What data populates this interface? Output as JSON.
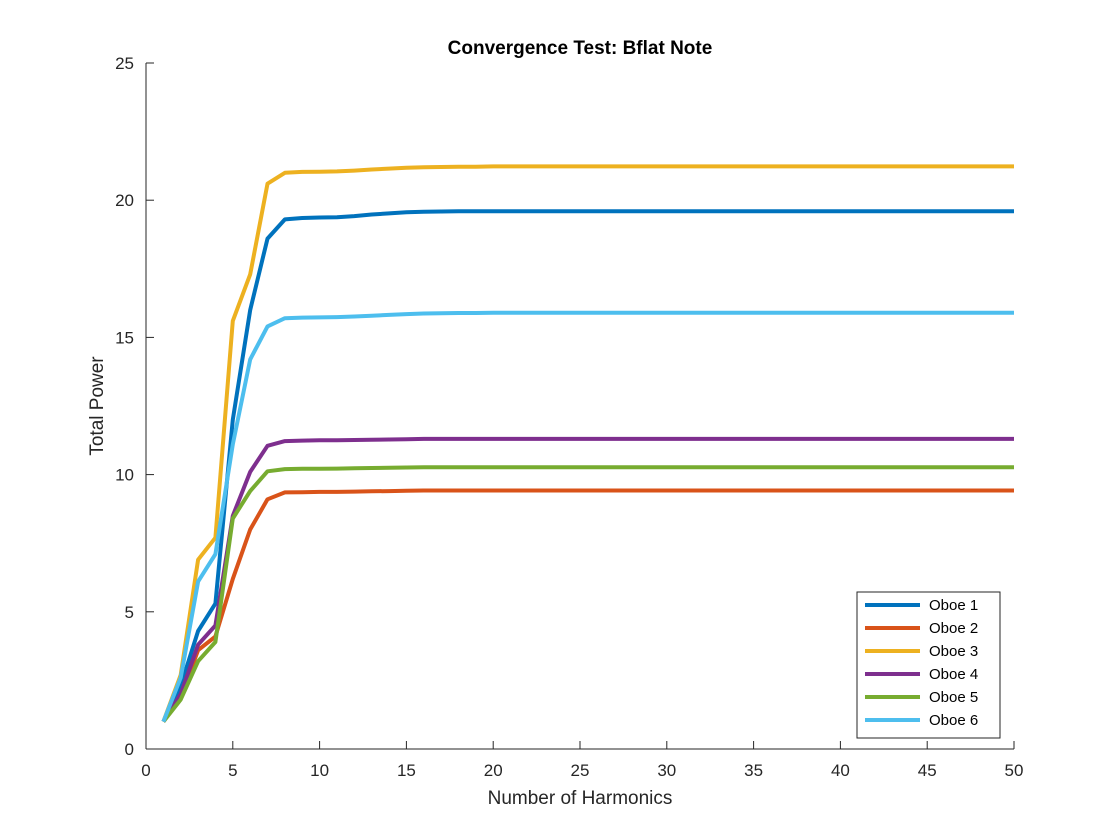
{
  "chart_data": {
    "type": "line",
    "title": "Convergence Test: Bflat Note",
    "xlabel": "Number of Harmonics",
    "ylabel": "Total Power",
    "xlim": [
      0,
      50
    ],
    "ylim": [
      0,
      25
    ],
    "xticks": [
      0,
      5,
      10,
      15,
      20,
      25,
      30,
      35,
      40,
      45,
      50
    ],
    "yticks": [
      0,
      5,
      10,
      15,
      20,
      25
    ],
    "grid": false,
    "legend_position": "bottom-right",
    "x": [
      1,
      2,
      3,
      4,
      5,
      6,
      7,
      8,
      9,
      10,
      11,
      12,
      13,
      14,
      15,
      16,
      17,
      18,
      19,
      20,
      21,
      22,
      23,
      24,
      25,
      26,
      27,
      28,
      29,
      30,
      31,
      32,
      33,
      34,
      35,
      36,
      37,
      38,
      39,
      40,
      41,
      42,
      43,
      44,
      45,
      46,
      47,
      48,
      49,
      50
    ],
    "series": [
      {
        "name": "Oboe 1",
        "color": "#0072BD",
        "values": [
          1.0,
          2.3,
          4.3,
          5.3,
          12.0,
          16.0,
          18.6,
          19.3,
          19.35,
          19.37,
          19.38,
          19.42,
          19.48,
          19.52,
          19.56,
          19.58,
          19.59,
          19.6,
          19.6,
          19.6,
          19.6,
          19.6,
          19.6,
          19.6,
          19.6,
          19.6,
          19.6,
          19.6,
          19.6,
          19.6,
          19.6,
          19.6,
          19.6,
          19.6,
          19.6,
          19.6,
          19.6,
          19.6,
          19.6,
          19.6,
          19.6,
          19.6,
          19.6,
          19.6,
          19.6,
          19.6,
          19.6,
          19.6,
          19.6,
          19.6
        ]
      },
      {
        "name": "Oboe 2",
        "color": "#D95319",
        "values": [
          1.0,
          1.9,
          3.6,
          4.1,
          6.2,
          8.0,
          9.1,
          9.35,
          9.36,
          9.37,
          9.37,
          9.38,
          9.39,
          9.4,
          9.41,
          9.42,
          9.42,
          9.42,
          9.42,
          9.42,
          9.42,
          9.42,
          9.42,
          9.42,
          9.42,
          9.42,
          9.42,
          9.42,
          9.42,
          9.42,
          9.42,
          9.42,
          9.42,
          9.42,
          9.42,
          9.42,
          9.42,
          9.42,
          9.42,
          9.42,
          9.42,
          9.42,
          9.42,
          9.42,
          9.42,
          9.42,
          9.42,
          9.42,
          9.42,
          9.42
        ]
      },
      {
        "name": "Oboe 3",
        "color": "#EDB120",
        "values": [
          1.0,
          2.7,
          6.9,
          7.7,
          15.6,
          17.3,
          20.6,
          21.0,
          21.03,
          21.04,
          21.05,
          21.08,
          21.12,
          21.15,
          21.18,
          21.2,
          21.21,
          21.22,
          21.22,
          21.23,
          21.23,
          21.23,
          21.23,
          21.23,
          21.23,
          21.23,
          21.23,
          21.23,
          21.23,
          21.23,
          21.23,
          21.23,
          21.23,
          21.23,
          21.23,
          21.23,
          21.23,
          21.23,
          21.23,
          21.23,
          21.23,
          21.23,
          21.23,
          21.23,
          21.23,
          21.23,
          21.23,
          21.23,
          21.23,
          21.23
        ]
      },
      {
        "name": "Oboe 4",
        "color": "#7E2F8E",
        "values": [
          1.0,
          2.0,
          3.8,
          4.5,
          8.5,
          10.1,
          11.05,
          11.22,
          11.24,
          11.25,
          11.25,
          11.26,
          11.27,
          11.28,
          11.29,
          11.3,
          11.3,
          11.3,
          11.3,
          11.3,
          11.3,
          11.3,
          11.3,
          11.3,
          11.3,
          11.3,
          11.3,
          11.3,
          11.3,
          11.3,
          11.3,
          11.3,
          11.3,
          11.3,
          11.3,
          11.3,
          11.3,
          11.3,
          11.3,
          11.3,
          11.3,
          11.3,
          11.3,
          11.3,
          11.3,
          11.3,
          11.3,
          11.3,
          11.3,
          11.3
        ]
      },
      {
        "name": "Oboe 5",
        "color": "#77AC30",
        "values": [
          1.0,
          1.8,
          3.2,
          3.9,
          8.4,
          9.4,
          10.12,
          10.2,
          10.21,
          10.21,
          10.22,
          10.23,
          10.24,
          10.25,
          10.26,
          10.27,
          10.27,
          10.27,
          10.27,
          10.27,
          10.27,
          10.27,
          10.27,
          10.27,
          10.27,
          10.27,
          10.27,
          10.27,
          10.27,
          10.27,
          10.27,
          10.27,
          10.27,
          10.27,
          10.27,
          10.27,
          10.27,
          10.27,
          10.27,
          10.27,
          10.27,
          10.27,
          10.27,
          10.27,
          10.27,
          10.27,
          10.27,
          10.27,
          10.27,
          10.27
        ]
      },
      {
        "name": "Oboe 6",
        "color": "#4DBEEE",
        "values": [
          1.0,
          2.6,
          6.1,
          7.1,
          11.1,
          14.2,
          15.4,
          15.7,
          15.72,
          15.73,
          15.74,
          15.76,
          15.79,
          15.82,
          15.85,
          15.87,
          15.88,
          15.89,
          15.89,
          15.9,
          15.9,
          15.9,
          15.9,
          15.9,
          15.9,
          15.9,
          15.9,
          15.9,
          15.9,
          15.9,
          15.9,
          15.9,
          15.9,
          15.9,
          15.9,
          15.9,
          15.9,
          15.9,
          15.9,
          15.9,
          15.9,
          15.9,
          15.9,
          15.9,
          15.9,
          15.9,
          15.9,
          15.9,
          15.9,
          15.9
        ]
      }
    ]
  }
}
